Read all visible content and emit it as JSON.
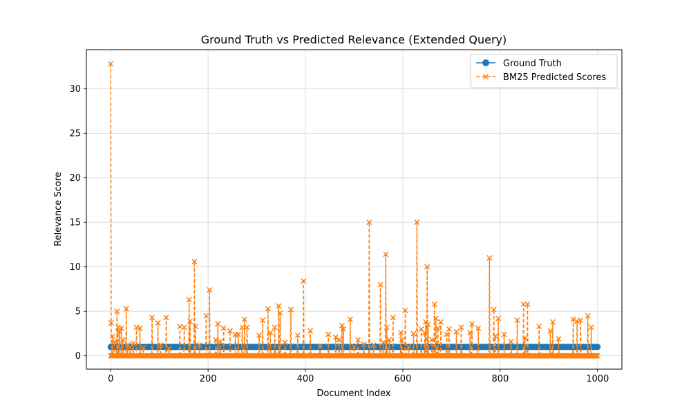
{
  "chart_data": {
    "type": "line",
    "title": "Ground Truth vs Predicted Relevance (Extended Query)",
    "xlabel": "Document Index",
    "ylabel": "Relevance Score",
    "xlim": [
      -50,
      1050
    ],
    "ylim": [
      -1.5,
      34.4
    ],
    "xticks": [
      0,
      200,
      400,
      600,
      800,
      1000
    ],
    "yticks": [
      0,
      5,
      10,
      15,
      20,
      25,
      30
    ],
    "grid": true,
    "legend_position": "top-right",
    "x_range": [
      0,
      1000
    ],
    "series": [
      {
        "name": "Ground Truth",
        "color": "#1f77b4",
        "marker": "circle",
        "line_style": "solid",
        "value": 1
      },
      {
        "name": "BM25 Predicted Scores",
        "color": "#ff7f0e",
        "marker": "x",
        "line_style": "dashed",
        "baseline": 0,
        "peaks": [
          [
            0,
            32.8
          ],
          [
            1,
            3.7
          ],
          [
            4,
            2.2
          ],
          [
            8,
            1.6
          ],
          [
            13,
            5.0
          ],
          [
            15,
            3.2
          ],
          [
            18,
            2.7
          ],
          [
            22,
            3.1
          ],
          [
            25,
            1.8
          ],
          [
            32,
            5.3
          ],
          [
            35,
            1.2
          ],
          [
            40,
            1.0
          ],
          [
            46,
            1.4
          ],
          [
            53,
            3.2
          ],
          [
            60,
            3.1
          ],
          [
            67,
            0.9
          ],
          [
            85,
            4.3
          ],
          [
            97,
            3.7
          ],
          [
            103,
            1.2
          ],
          [
            114,
            4.3
          ],
          [
            120,
            0.8
          ],
          [
            142,
            3.3
          ],
          [
            151,
            3.2
          ],
          [
            161,
            6.3
          ],
          [
            163,
            3.9
          ],
          [
            172,
            10.6
          ],
          [
            174,
            3.3
          ],
          [
            182,
            1.2
          ],
          [
            196,
            4.5
          ],
          [
            203,
            7.4
          ],
          [
            216,
            1.8
          ],
          [
            220,
            3.6
          ],
          [
            225,
            1.6
          ],
          [
            232,
            3.1
          ],
          [
            245,
            2.8
          ],
          [
            256,
            2.4
          ],
          [
            262,
            2.4
          ],
          [
            270,
            3.2
          ],
          [
            275,
            4.1
          ],
          [
            280,
            3.2
          ],
          [
            305,
            2.3
          ],
          [
            312,
            4.0
          ],
          [
            323,
            5.3
          ],
          [
            328,
            2.6
          ],
          [
            337,
            3.2
          ],
          [
            345,
            5.6
          ],
          [
            348,
            4.8
          ],
          [
            358,
            1.5
          ],
          [
            370,
            5.2
          ],
          [
            384,
            2.3
          ],
          [
            396,
            8.4
          ],
          [
            410,
            2.8
          ],
          [
            430,
            1.1
          ],
          [
            447,
            2.4
          ],
          [
            462,
            2.1
          ],
          [
            469,
            1.8
          ],
          [
            475,
            3.4
          ],
          [
            478,
            3.0
          ],
          [
            492,
            4.1
          ],
          [
            500,
            1.0
          ],
          [
            508,
            1.8
          ],
          [
            520,
            1.3
          ],
          [
            531,
            15.0
          ],
          [
            540,
            1.2
          ],
          [
            554,
            8.0
          ],
          [
            560,
            1.5
          ],
          [
            565,
            11.4
          ],
          [
            567,
            3.2
          ],
          [
            572,
            1.8
          ],
          [
            580,
            4.3
          ],
          [
            596,
            2.6
          ],
          [
            598,
            1.8
          ],
          [
            605,
            5.1
          ],
          [
            612,
            1.0
          ],
          [
            622,
            2.5
          ],
          [
            629,
            15.0
          ],
          [
            638,
            3.0
          ],
          [
            645,
            2.6
          ],
          [
            647,
            3.8
          ],
          [
            650,
            10.0
          ],
          [
            652,
            3.5
          ],
          [
            660,
            1.8
          ],
          [
            665,
            5.8
          ],
          [
            668,
            4.2
          ],
          [
            672,
            3.1
          ],
          [
            678,
            3.8
          ],
          [
            690,
            2.4
          ],
          [
            695,
            3.0
          ],
          [
            710,
            2.7
          ],
          [
            720,
            3.2
          ],
          [
            738,
            2.6
          ],
          [
            742,
            3.6
          ],
          [
            755,
            3.1
          ],
          [
            778,
            11.0
          ],
          [
            787,
            5.2
          ],
          [
            790,
            2.2
          ],
          [
            796,
            4.2
          ],
          [
            808,
            2.4
          ],
          [
            822,
            1.6
          ],
          [
            835,
            4.0
          ],
          [
            848,
            5.8
          ],
          [
            851,
            2.0
          ],
          [
            856,
            5.8
          ],
          [
            880,
            3.3
          ],
          [
            903,
            2.8
          ],
          [
            908,
            3.8
          ],
          [
            920,
            1.9
          ],
          [
            950,
            4.1
          ],
          [
            958,
            3.9
          ],
          [
            965,
            4.0
          ],
          [
            980,
            4.5
          ],
          [
            987,
            3.2
          ]
        ]
      }
    ]
  }
}
